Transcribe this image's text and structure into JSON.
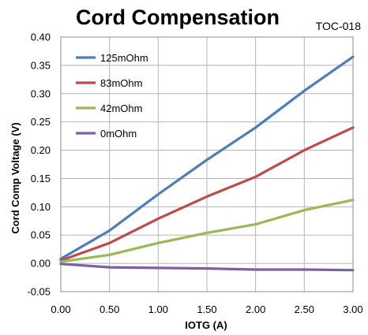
{
  "chart_data": {
    "type": "line",
    "title": "Cord Compensation",
    "tag": "TOC-018",
    "xlabel": "IOTG (A)",
    "ylabel": "Cord Comp Voltage (V)",
    "xlim": [
      0,
      3
    ],
    "ylim": [
      -0.05,
      0.4
    ],
    "x_ticks": [
      "0.00",
      "0.50",
      "1.00",
      "1.50",
      "2.00",
      "2.50",
      "3.00"
    ],
    "y_ticks": [
      "-0.05",
      "0.00",
      "0.05",
      "0.10",
      "0.15",
      "0.20",
      "0.25",
      "0.30",
      "0.35",
      "0.40"
    ],
    "grid": true,
    "legend_position": "top-left",
    "x": [
      0,
      0.5,
      1.0,
      1.5,
      2.0,
      2.5,
      3.0
    ],
    "series": [
      {
        "name": "125mOhm",
        "color": "#4a7ebb",
        "values": [
          0.008,
          0.058,
          0.122,
          0.183,
          0.24,
          0.305,
          0.365
        ]
      },
      {
        "name": "83mOhm",
        "color": "#be4b48",
        "values": [
          0.005,
          0.036,
          0.079,
          0.118,
          0.153,
          0.2,
          0.24
        ]
      },
      {
        "name": "42mOhm",
        "color": "#98b954",
        "values": [
          0.003,
          0.015,
          0.036,
          0.054,
          0.069,
          0.094,
          0.112
        ]
      },
      {
        "name": "0mOhm",
        "color": "#7d60a0",
        "values": [
          -0.001,
          -0.007,
          -0.008,
          -0.009,
          -0.011,
          -0.011,
          -0.012
        ]
      }
    ]
  }
}
